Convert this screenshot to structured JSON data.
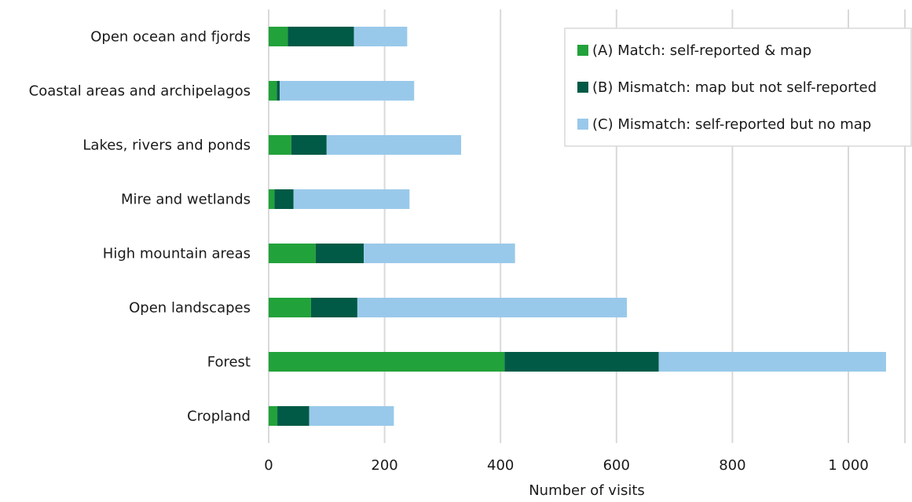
{
  "chart_data": {
    "type": "bar",
    "orientation": "horizontal",
    "stacked": true,
    "categories": [
      "Open ocean and fjords",
      "Coastal areas and archipelagos",
      "Lakes, rivers and ponds",
      "Mire and wetlands",
      "High mountain areas",
      "Open landscapes",
      "Forest",
      "Cropland"
    ],
    "series": [
      {
        "name": "(A) Match: self-reported & map",
        "color": "#22a23a",
        "values": [
          33,
          14,
          39,
          10,
          81,
          73,
          407,
          15
        ]
      },
      {
        "name": "(B) Mismatch: map but not self-reported",
        "color": "#005a46",
        "values": [
          114,
          5,
          61,
          33,
          83,
          80,
          266,
          55
        ]
      },
      {
        "name": "(C) Mismatch: self-reported but no map",
        "color": "#99c9ea",
        "values": [
          92,
          232,
          232,
          200,
          261,
          465,
          392,
          146
        ]
      }
    ],
    "xlabel": "Number of visits",
    "ylabel": "",
    "xlim": [
      0,
      1100
    ],
    "xticks": [
      0,
      200,
      400,
      600,
      800,
      1000
    ],
    "xtick_labels": [
      "0",
      "200",
      "400",
      "600",
      "800",
      "1 000"
    ],
    "grid": true,
    "legend_position": "top-right"
  }
}
